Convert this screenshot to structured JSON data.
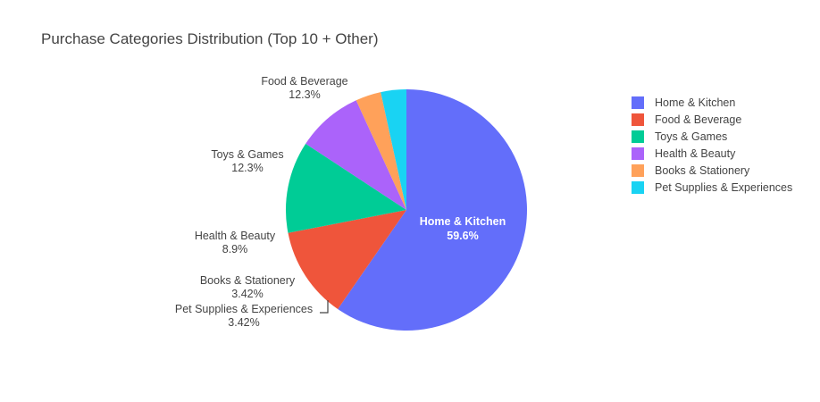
{
  "chart_data": {
    "type": "pie",
    "title": "Purchase Categories Distribution (Top 10 + Other)",
    "slices": [
      {
        "label": "Home & Kitchen",
        "percent_label": "59.6%",
        "value": 59.6,
        "color": "#636efa"
      },
      {
        "label": "Food & Beverage",
        "percent_label": "12.3%",
        "value": 12.3,
        "color": "#EF553B"
      },
      {
        "label": "Toys & Games",
        "percent_label": "12.3%",
        "value": 12.3,
        "color": "#00cc96"
      },
      {
        "label": "Health & Beauty",
        "percent_label": "8.9%",
        "value": 8.9,
        "color": "#ab63fa"
      },
      {
        "label": "Books & Stationery",
        "percent_label": "3.42%",
        "value": 3.42,
        "color": "#FFA15A"
      },
      {
        "label": "Pet Supplies & Experiences",
        "percent_label": "3.42%",
        "value": 3.42,
        "color": "#19d3f3"
      }
    ],
    "legend_placement": "top-right"
  }
}
